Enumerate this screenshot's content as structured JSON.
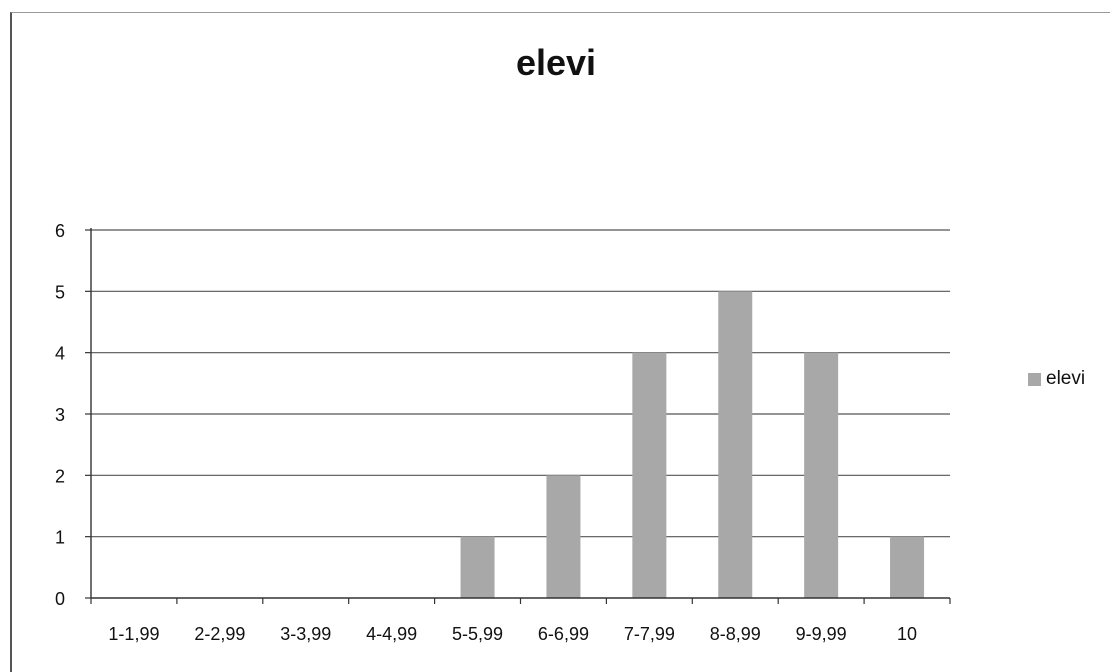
{
  "chart_data": {
    "type": "bar",
    "title": "elevi",
    "categories": [
      "1-1,99",
      "2-2,99",
      "3-3,99",
      "4-4,99",
      "5-5,99",
      "6-6,99",
      "7-7,99",
      "8-8,99",
      "9-9,99",
      "10"
    ],
    "series": [
      {
        "name": "elevi",
        "values": [
          0,
          0,
          0,
          0,
          1,
          2,
          4,
          5,
          4,
          1
        ]
      }
    ],
    "ylim": [
      0,
      6
    ],
    "yticks": [
      0,
      1,
      2,
      3,
      4,
      5,
      6
    ],
    "xlabel": "",
    "ylabel": "",
    "grid": true,
    "legend": "right",
    "colors": {
      "bar": "#a8a8a8",
      "grid": "#555555",
      "axis": "#333333"
    }
  }
}
